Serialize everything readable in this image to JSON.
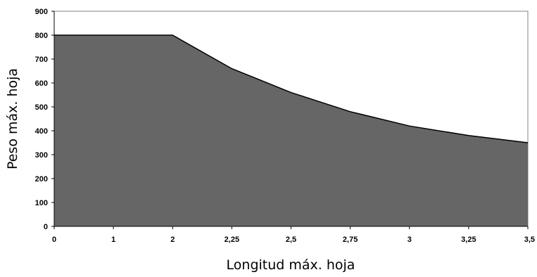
{
  "chart_data": {
    "type": "area",
    "title": "",
    "xlabel": "Longitud máx. hoja",
    "ylabel": "Peso máx. hoja",
    "categories": [
      "0",
      "1",
      "2",
      "2,25",
      "2,5",
      "2,75",
      "3",
      "3,25",
      "3,5"
    ],
    "series": [
      {
        "values": [
          800,
          800,
          800,
          660,
          560,
          480,
          420,
          380,
          350
        ]
      }
    ],
    "ylim": [
      0,
      900
    ],
    "yticks": [
      "0",
      "100",
      "200",
      "300",
      "400",
      "500",
      "600",
      "700",
      "800",
      "900"
    ],
    "grid": false,
    "legend": "none",
    "colors": {
      "fill": "#666666",
      "line": "#000000",
      "frame": "#808080"
    }
  }
}
